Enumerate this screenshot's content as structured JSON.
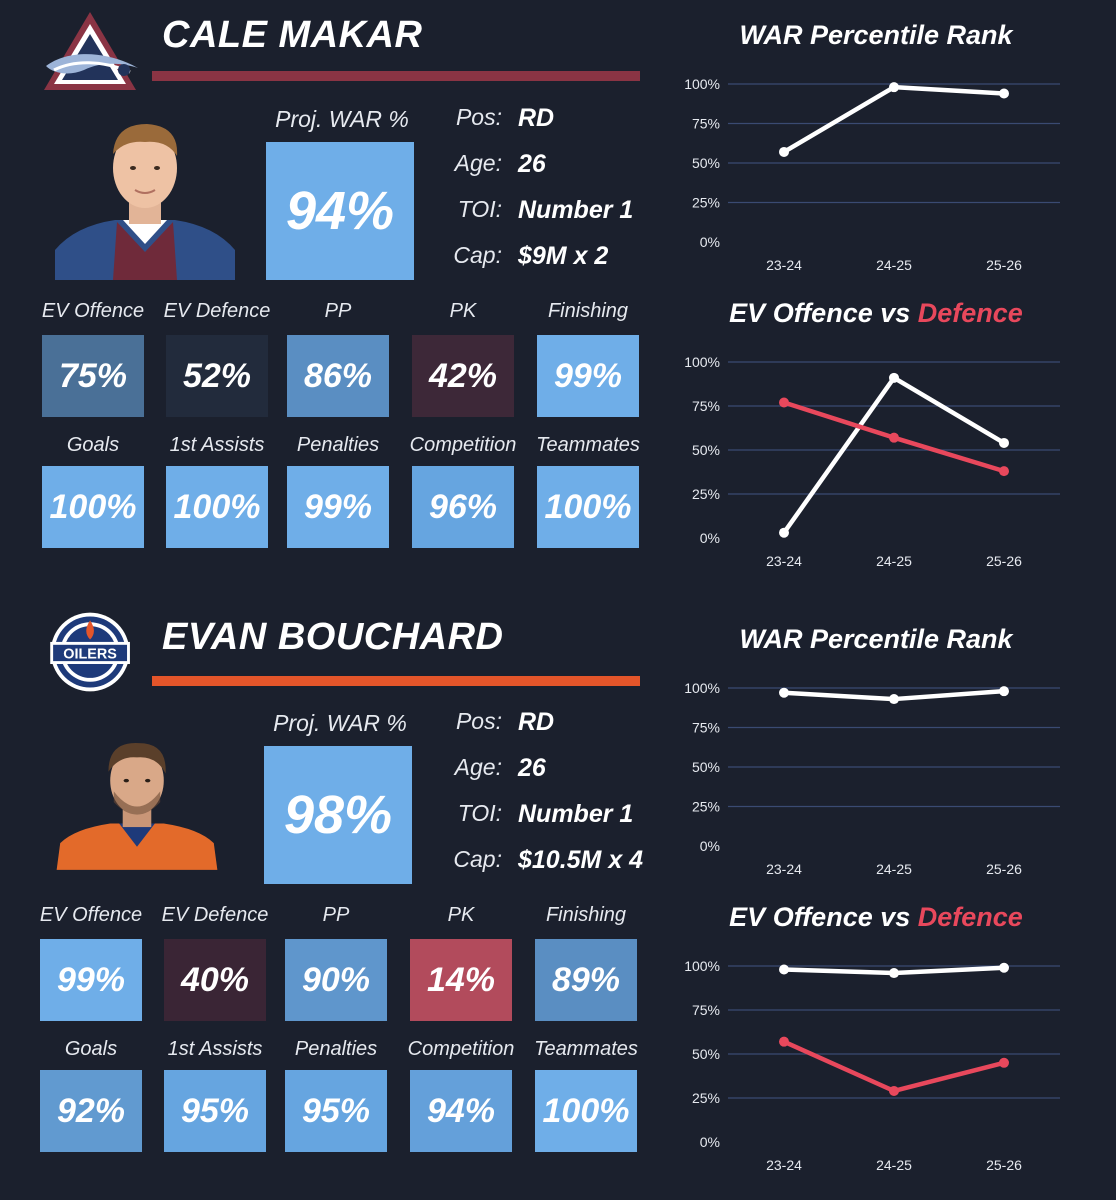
{
  "players": [
    {
      "name": "CALE MAKAR",
      "team_logo": "colorado-avalanche-logo",
      "accent": "#8a3444",
      "proj_war_label": "Proj. WAR %",
      "proj_war": "94%",
      "proj_war_color": "#6faee8",
      "info": [
        {
          "label": "Pos:",
          "value": "RD"
        },
        {
          "label": "Age:",
          "value": "26"
        },
        {
          "label": "TOI:",
          "value": "Number 1"
        },
        {
          "label": "Cap:",
          "value": "$9M x 2"
        }
      ],
      "metrics": [
        {
          "label": "EV Offence",
          "value": "75%",
          "color": "#4a7097"
        },
        {
          "label": "EV Defence",
          "value": "52%",
          "color": "#222b3c"
        },
        {
          "label": "PP",
          "value": "86%",
          "color": "#5a8ec2"
        },
        {
          "label": "PK",
          "value": "42%",
          "color": "#3d2838"
        },
        {
          "label": "Finishing",
          "value": "99%",
          "color": "#6faee8"
        },
        {
          "label": "Goals",
          "value": "100%",
          "color": "#6faee8"
        },
        {
          "label": "1st Assists",
          "value": "100%",
          "color": "#6faee8"
        },
        {
          "label": "Penalties",
          "value": "99%",
          "color": "#6faee8"
        },
        {
          "label": "Competition",
          "value": "96%",
          "color": "#66a5e0"
        },
        {
          "label": "Teammates",
          "value": "100%",
          "color": "#6faee8"
        }
      ],
      "war_title": "WAR Percentile Rank",
      "ev_title_a": "EV Offence vs ",
      "ev_title_b": "Defence"
    },
    {
      "name": "EVAN BOUCHARD",
      "team_logo": "edmonton-oilers-logo",
      "accent": "#e4552a",
      "proj_war_label": "Proj. WAR %",
      "proj_war": "98%",
      "proj_war_color": "#6faee8",
      "info": [
        {
          "label": "Pos:",
          "value": "RD"
        },
        {
          "label": "Age:",
          "value": "26"
        },
        {
          "label": "TOI:",
          "value": "Number 1"
        },
        {
          "label": "Cap:",
          "value": "$10.5M x 4"
        }
      ],
      "metrics": [
        {
          "label": "EV Offence",
          "value": "99%",
          "color": "#6faee8"
        },
        {
          "label": "EV Defence",
          "value": "40%",
          "color": "#3a2535"
        },
        {
          "label": "PP",
          "value": "90%",
          "color": "#5f96cc"
        },
        {
          "label": "PK",
          "value": "14%",
          "color": "#b24b5c"
        },
        {
          "label": "Finishing",
          "value": "89%",
          "color": "#5a8ec2"
        },
        {
          "label": "Goals",
          "value": "92%",
          "color": "#619ad0"
        },
        {
          "label": "1st Assists",
          "value": "95%",
          "color": "#66a5e0"
        },
        {
          "label": "Penalties",
          "value": "95%",
          "color": "#66a5e0"
        },
        {
          "label": "Competition",
          "value": "94%",
          "color": "#64a0da"
        },
        {
          "label": "Teammates",
          "value": "100%",
          "color": "#6faee8"
        }
      ],
      "war_title": "WAR Percentile Rank",
      "ev_title_a": "EV Offence vs ",
      "ev_title_b": "Defence"
    }
  ],
  "chart_data": [
    {
      "type": "line",
      "title": "WAR Percentile Rank",
      "categories": [
        "23-24",
        "24-25",
        "25-26"
      ],
      "y_ticks": [
        "0%",
        "25%",
        "50%",
        "75%",
        "100%"
      ],
      "ylim": [
        0,
        100
      ],
      "grid": true,
      "series": [
        {
          "values": [
            57,
            98,
            94
          ],
          "color": "#ffffff"
        }
      ]
    },
    {
      "type": "line",
      "title": "EV Offence vs Defence",
      "categories": [
        "23-24",
        "24-25",
        "25-26"
      ],
      "y_ticks": [
        "0%",
        "25%",
        "50%",
        "75%",
        "100%"
      ],
      "ylim": [
        0,
        100
      ],
      "grid": true,
      "series": [
        {
          "name": "EV Offence",
          "values": [
            3,
            91,
            54
          ],
          "color": "#ffffff"
        },
        {
          "name": "Defence",
          "values": [
            77,
            57,
            38
          ],
          "color": "#e8485c"
        }
      ]
    },
    {
      "type": "line",
      "title": "WAR Percentile Rank",
      "categories": [
        "23-24",
        "24-25",
        "25-26"
      ],
      "y_ticks": [
        "0%",
        "25%",
        "50%",
        "75%",
        "100%"
      ],
      "ylim": [
        0,
        100
      ],
      "grid": true,
      "series": [
        {
          "values": [
            97,
            93,
            98
          ],
          "color": "#ffffff"
        }
      ]
    },
    {
      "type": "line",
      "title": "EV Offence vs Defence",
      "categories": [
        "23-24",
        "24-25",
        "25-26"
      ],
      "y_ticks": [
        "0%",
        "25%",
        "50%",
        "75%",
        "100%"
      ],
      "ylim": [
        0,
        100
      ],
      "grid": true,
      "series": [
        {
          "name": "EV Offence",
          "values": [
            98,
            96,
            99
          ],
          "color": "#ffffff"
        },
        {
          "name": "Defence",
          "values": [
            57,
            29,
            45
          ],
          "color": "#e8485c"
        }
      ]
    }
  ]
}
